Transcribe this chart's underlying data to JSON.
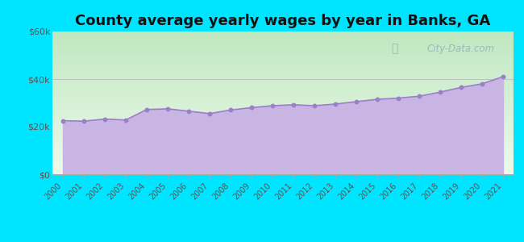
{
  "title": "County average yearly wages by year in Banks, GA",
  "years": [
    2000,
    2001,
    2002,
    2003,
    2004,
    2005,
    2006,
    2007,
    2008,
    2009,
    2010,
    2011,
    2012,
    2013,
    2014,
    2015,
    2016,
    2017,
    2018,
    2019,
    2020,
    2021
  ],
  "wages": [
    22500,
    22300,
    23200,
    22800,
    27200,
    27500,
    26500,
    25500,
    27000,
    28000,
    28800,
    29200,
    28800,
    29500,
    30500,
    31500,
    32000,
    32800,
    34500,
    36500,
    38000,
    41000
  ],
  "ylim": [
    0,
    60000
  ],
  "yticks": [
    0,
    20000,
    40000,
    60000
  ],
  "ytick_labels": [
    "$0",
    "$20k",
    "$40k",
    "$60k"
  ],
  "fill_color": "#c9b5e3",
  "line_color": "#9b7fc7",
  "dot_color": "#9b7fc7",
  "bg_grad_top": "#d4f0d4",
  "bg_grad_bottom": "#f5fff5",
  "outer_bg": "#00e5ff",
  "title_fontsize": 13,
  "watermark": "City-Data.com"
}
